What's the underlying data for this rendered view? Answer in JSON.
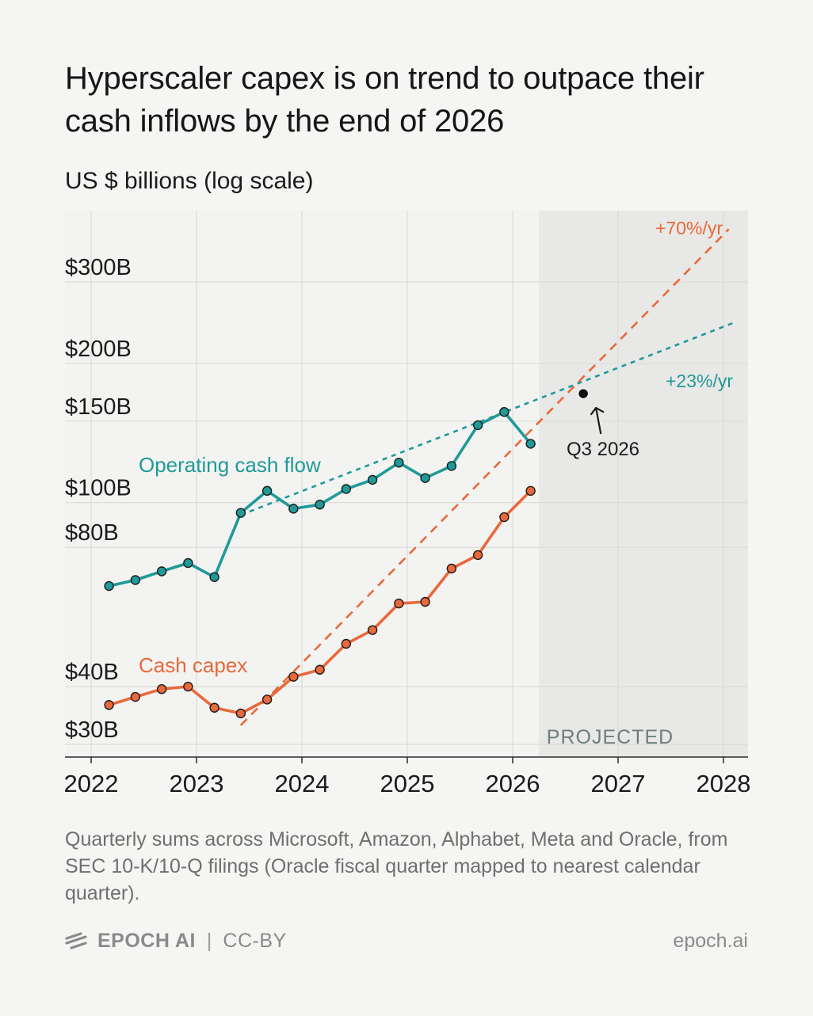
{
  "title": "Hyperscaler capex is on trend to outpace their cash inflows by the end of 2026",
  "subtitle": "US $ billions (log scale)",
  "caption": "Quarterly sums across Microsoft, Amazon, Alphabet, Meta and Oracle, from SEC 10-K/10-Q filings (Oracle fiscal quarter mapped to nearest calendar quarter).",
  "footer": {
    "brand": "EPOCH AI",
    "separator": "|",
    "license": "CC-BY",
    "site": "epoch.ai",
    "logo_icon": "epoch-logo-icon"
  },
  "colors": {
    "ocf": "#1f9a98",
    "capex": "#e8693c",
    "projected_bg": "#e8e8e6",
    "grid": "#dcdcda"
  },
  "chart_data": {
    "type": "line",
    "title": "Hyperscaler capex is on trend to outpace their cash inflows by the end of 2026",
    "ylabel": "US $ billions (log scale)",
    "yscale": "log",
    "xlim": [
      2022.0,
      2028.2
    ],
    "ylim": [
      29,
      430
    ],
    "x_ticks": [
      2022,
      2023,
      2024,
      2025,
      2026,
      2027,
      2028
    ],
    "x_tick_labels": [
      "2022",
      "2023",
      "2024",
      "2025",
      "2026",
      "2027",
      "2028"
    ],
    "y_ticks": [
      30,
      40,
      80,
      100,
      150,
      200,
      300
    ],
    "y_tick_labels": [
      "$30B",
      "$40B",
      "$80B",
      "$100B",
      "$150B",
      "$200B",
      "$300B"
    ],
    "grid": true,
    "projected_region": {
      "x_start": 2026.25,
      "label": "PROJECTED"
    },
    "series": [
      {
        "name": "Operating cash flow",
        "color": "#1f9a98",
        "x": [
          2022.17,
          2022.42,
          2022.67,
          2022.92,
          2023.17,
          2023.42,
          2023.67,
          2023.92,
          2024.17,
          2024.42,
          2024.67,
          2024.92,
          2025.17,
          2025.42,
          2025.67,
          2025.92,
          2026.17
        ],
        "y": [
          66,
          68,
          71,
          74,
          69,
          95,
          106,
          97,
          99,
          107,
          112,
          122,
          113,
          120,
          147,
          157,
          134
        ]
      },
      {
        "name": "Cash capex",
        "color": "#e8693c",
        "x": [
          2022.17,
          2022.42,
          2022.67,
          2022.92,
          2023.17,
          2023.42,
          2023.67,
          2023.92,
          2024.17,
          2024.42,
          2024.67,
          2024.92,
          2025.17,
          2025.42,
          2025.67,
          2025.92,
          2026.17
        ],
        "y": [
          36.5,
          38,
          39.5,
          40,
          36,
          35,
          37.5,
          42,
          43.5,
          49.5,
          53,
          60.5,
          61,
          72,
          77,
          93,
          106
        ]
      }
    ],
    "trends": [
      {
        "name": "+23%/yr",
        "color": "#1f9a98",
        "x": [
          2023.42,
          2028.1
        ],
        "y": [
          94,
          245
        ]
      },
      {
        "name": "+70%/yr",
        "color": "#e8693c",
        "x": [
          2023.42,
          2028.05
        ],
        "y": [
          33,
          390
        ]
      }
    ],
    "intersection": {
      "x": 2026.67,
      "y": 172,
      "label": "Q3 2026"
    },
    "annotations": [
      "Operating cash flow",
      "Cash capex",
      "+70%/yr",
      "+23%/yr",
      "Q3 2026",
      "PROJECTED"
    ]
  }
}
